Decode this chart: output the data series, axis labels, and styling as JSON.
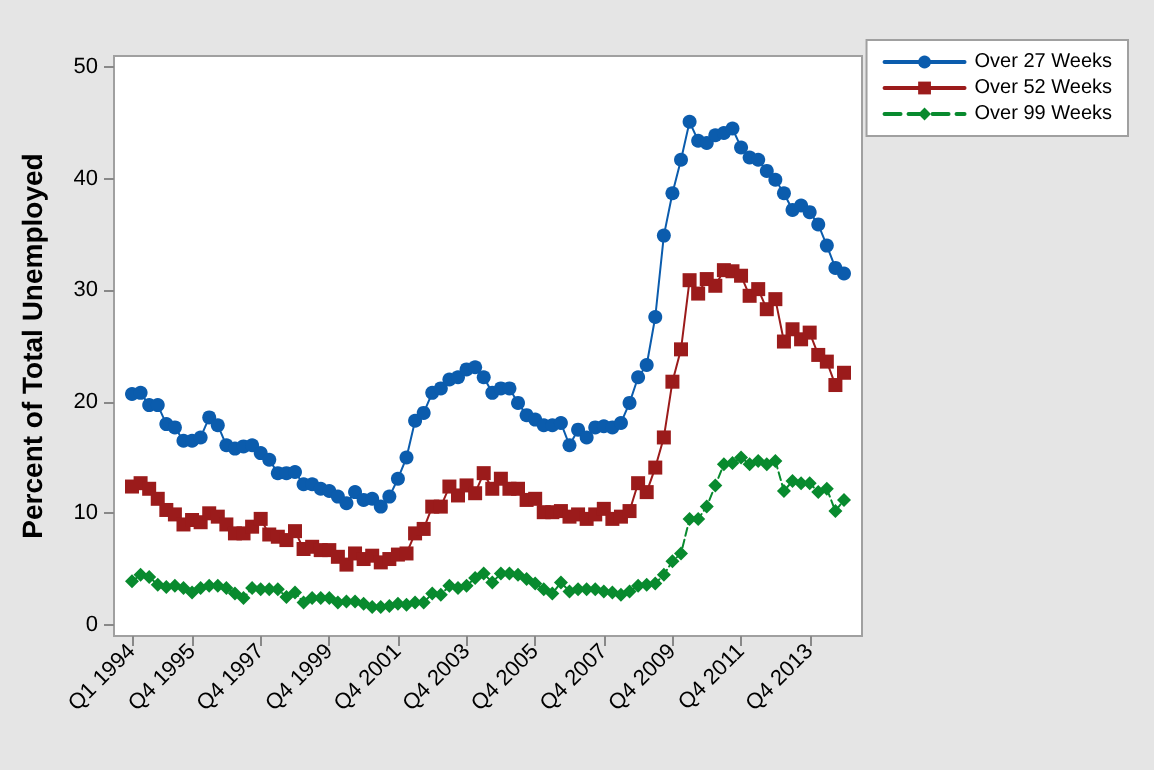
{
  "chart_data": {
    "type": "line",
    "ylabel": "Percent of Total Unemployed",
    "categories": [
      "Q1 1994",
      null,
      null,
      null,
      null,
      null,
      null,
      "Q4 1995",
      null,
      null,
      null,
      null,
      null,
      null,
      null,
      "Q4 1997",
      null,
      null,
      null,
      null,
      null,
      null,
      null,
      "Q4 1999",
      null,
      null,
      null,
      null,
      null,
      null,
      null,
      "Q4 2001",
      null,
      null,
      null,
      null,
      null,
      null,
      null,
      "Q4 2003",
      null,
      null,
      null,
      null,
      null,
      null,
      null,
      "Q4 2005",
      null,
      null,
      null,
      null,
      null,
      null,
      null,
      "Q4 2007",
      null,
      null,
      null,
      null,
      null,
      null,
      null,
      "Q4 2009",
      null,
      null,
      null,
      null,
      null,
      null,
      null,
      "Q4 2011",
      null,
      null,
      null,
      null,
      null,
      null,
      null,
      "Q4 2013",
      null,
      null,
      null,
      null
    ],
    "series": [
      {
        "name": "Over 27 Weeks",
        "color": "#0b5cad",
        "marker": "circle",
        "line_style": "solid",
        "values": [
          20.7,
          20.8,
          19.7,
          19.7,
          18.0,
          17.7,
          16.5,
          16.5,
          16.8,
          18.6,
          17.9,
          16.1,
          15.8,
          16.0,
          16.1,
          15.4,
          14.8,
          13.6,
          13.6,
          13.7,
          12.6,
          12.6,
          12.2,
          12.0,
          11.5,
          10.9,
          11.9,
          11.2,
          11.3,
          10.6,
          11.5,
          13.1,
          15.0,
          18.3,
          19.0,
          20.8,
          21.2,
          22.0,
          22.2,
          22.9,
          23.1,
          22.2,
          20.8,
          21.2,
          21.2,
          19.9,
          18.8,
          18.4,
          17.9,
          17.9,
          18.1,
          16.1,
          17.5,
          16.8,
          17.7,
          17.8,
          17.7,
          18.1,
          19.9,
          22.2,
          23.3,
          27.6,
          34.9,
          38.7,
          41.7,
          45.1,
          43.4,
          43.2,
          43.9,
          44.1,
          44.5,
          42.8,
          41.9,
          41.7,
          40.7,
          39.9,
          38.7,
          37.2,
          37.6,
          37.0,
          35.9,
          34.0,
          32.0,
          31.5
        ]
      },
      {
        "name": "Over 52 Weeks",
        "color": "#9b1b1b",
        "marker": "square",
        "line_style": "solid",
        "values": [
          12.4,
          12.7,
          12.2,
          11.3,
          10.3,
          9.9,
          9.0,
          9.4,
          9.2,
          10.0,
          9.7,
          9.0,
          8.2,
          8.2,
          8.8,
          9.5,
          8.1,
          7.9,
          7.6,
          8.4,
          6.8,
          7.0,
          6.7,
          6.7,
          6.1,
          5.4,
          6.4,
          5.9,
          6.2,
          5.6,
          5.9,
          6.3,
          6.4,
          8.2,
          8.6,
          10.6,
          10.6,
          12.4,
          11.6,
          12.5,
          11.8,
          13.6,
          12.2,
          13.1,
          12.2,
          12.2,
          11.2,
          11.3,
          10.1,
          10.1,
          10.2,
          9.7,
          9.9,
          9.5,
          9.9,
          10.4,
          9.5,
          9.7,
          10.2,
          12.7,
          11.9,
          14.1,
          16.8,
          21.8,
          24.7,
          30.9,
          29.7,
          31.0,
          30.4,
          31.8,
          31.7,
          31.3,
          29.5,
          30.1,
          28.3,
          29.2,
          25.4,
          26.5,
          25.6,
          26.2,
          24.2,
          23.6,
          21.5,
          22.6
        ]
      },
      {
        "name": "Over 99 Weeks",
        "color": "#088a2e",
        "marker": "diamond",
        "line_style": "dashed",
        "values": [
          3.9,
          4.5,
          4.3,
          3.6,
          3.4,
          3.5,
          3.3,
          2.9,
          3.3,
          3.5,
          3.5,
          3.3,
          2.8,
          2.4,
          3.3,
          3.2,
          3.2,
          3.2,
          2.5,
          2.9,
          2.0,
          2.4,
          2.4,
          2.4,
          2.0,
          2.1,
          2.1,
          1.9,
          1.6,
          1.6,
          1.7,
          1.9,
          1.8,
          2.0,
          2.0,
          2.8,
          2.7,
          3.5,
          3.3,
          3.5,
          4.2,
          4.6,
          3.8,
          4.6,
          4.6,
          4.5,
          4.1,
          3.7,
          3.2,
          2.8,
          3.8,
          3.0,
          3.2,
          3.2,
          3.2,
          3.0,
          2.9,
          2.7,
          3.0,
          3.5,
          3.6,
          3.7,
          4.5,
          5.7,
          6.4,
          9.5,
          9.5,
          10.6,
          12.5,
          14.4,
          14.5,
          15.0,
          14.4,
          14.7,
          14.4,
          14.7,
          12.0,
          12.9,
          12.7,
          12.7,
          11.9,
          12.2,
          10.2,
          11.2
        ]
      }
    ],
    "ylim": [
      -1,
      51
    ],
    "yticks": [
      0,
      10,
      20,
      30,
      40,
      50
    ],
    "grid": false,
    "legend": "top right"
  }
}
